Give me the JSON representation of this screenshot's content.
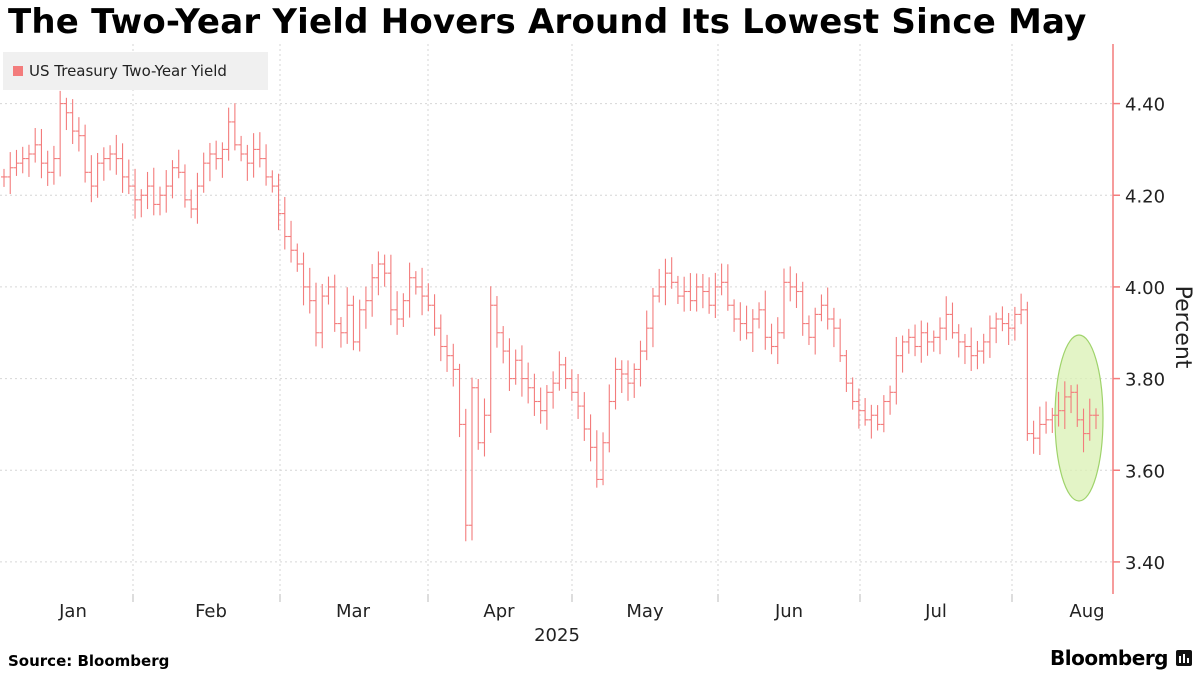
{
  "header": {
    "title": "The Two-Year Yield Hovers Around Its Lowest Since May"
  },
  "legend": {
    "label": "US Treasury Two-Year Yield"
  },
  "footer": {
    "source": "Source: Bloomberg",
    "brand": "Bloomberg"
  },
  "colors": {
    "series": "#f37c7c",
    "highlight_fill": "#d9f0b3",
    "highlight_stroke": "#9fd36b",
    "grid": "#d6d6d6"
  },
  "chart_data": {
    "type": "line",
    "title": "The Two-Year Yield Hovers Around Its Lowest Since May",
    "ylabel": "Percent",
    "xlabel": "2025",
    "ylim": [
      3.33,
      4.53
    ],
    "yticks": [
      3.4,
      3.6,
      3.8,
      4.0,
      4.2,
      4.4
    ],
    "ytick_labels": [
      "3.40",
      "3.60",
      "3.80",
      "4.00",
      "4.20",
      "4.40"
    ],
    "month_labels": [
      "Jan",
      "Feb",
      "Mar",
      "Apr",
      "May",
      "Jun",
      "Jul",
      "Aug"
    ],
    "year_label": "2025",
    "legend_position": "top-left",
    "annotation": "highlight ellipse around latest readings (late Jul - early Aug)",
    "series": [
      {
        "name": "US Treasury Two-Year Yield",
        "style": "daily high-low bars",
        "values": [
          4.24,
          4.26,
          4.27,
          4.28,
          4.29,
          4.31,
          4.27,
          4.25,
          4.28,
          4.4,
          4.38,
          4.34,
          4.33,
          4.25,
          4.22,
          4.27,
          4.28,
          4.29,
          4.28,
          4.24,
          4.22,
          4.19,
          4.2,
          4.22,
          4.18,
          4.2,
          4.22,
          4.26,
          4.25,
          4.19,
          4.17,
          4.22,
          4.27,
          4.29,
          4.28,
          4.3,
          4.36,
          4.31,
          4.29,
          4.27,
          4.3,
          4.28,
          4.24,
          4.22,
          4.16,
          4.11,
          4.08,
          4.05,
          4.0,
          3.97,
          3.9,
          3.98,
          4.0,
          3.92,
          3.9,
          3.96,
          3.88,
          3.95,
          3.97,
          4.02,
          4.05,
          4.03,
          3.95,
          3.93,
          3.97,
          4.02,
          4.0,
          3.98,
          3.96,
          3.91,
          3.87,
          3.85,
          3.82,
          3.7,
          3.48,
          3.78,
          3.66,
          3.72,
          3.96,
          3.9,
          3.86,
          3.8,
          3.84,
          3.8,
          3.78,
          3.75,
          3.73,
          3.77,
          3.79,
          3.83,
          3.8,
          3.77,
          3.74,
          3.69,
          3.65,
          3.58,
          3.66,
          3.75,
          3.82,
          3.81,
          3.79,
          3.82,
          3.86,
          3.91,
          3.98,
          4.0,
          4.03,
          4.01,
          3.98,
          3.99,
          3.97,
          4.0,
          3.99,
          3.96,
          4.0,
          4.01,
          3.96,
          3.93,
          3.92,
          3.9,
          3.93,
          3.95,
          3.89,
          3.87,
          3.9,
          4.01,
          4.0,
          3.99,
          3.92,
          3.89,
          3.94,
          3.96,
          3.93,
          3.91,
          3.85,
          3.79,
          3.75,
          3.73,
          3.71,
          3.72,
          3.7,
          3.75,
          3.77,
          3.85,
          3.88,
          3.89,
          3.87,
          3.9,
          3.88,
          3.89,
          3.91,
          3.94,
          3.9,
          3.88,
          3.87,
          3.85,
          3.86,
          3.88,
          3.91,
          3.93,
          3.92,
          3.91,
          3.94,
          3.95,
          3.68,
          3.67,
          3.7,
          3.71,
          3.72,
          3.73,
          3.76,
          3.77,
          3.71,
          3.68,
          3.72,
          3.72
        ]
      }
    ]
  }
}
